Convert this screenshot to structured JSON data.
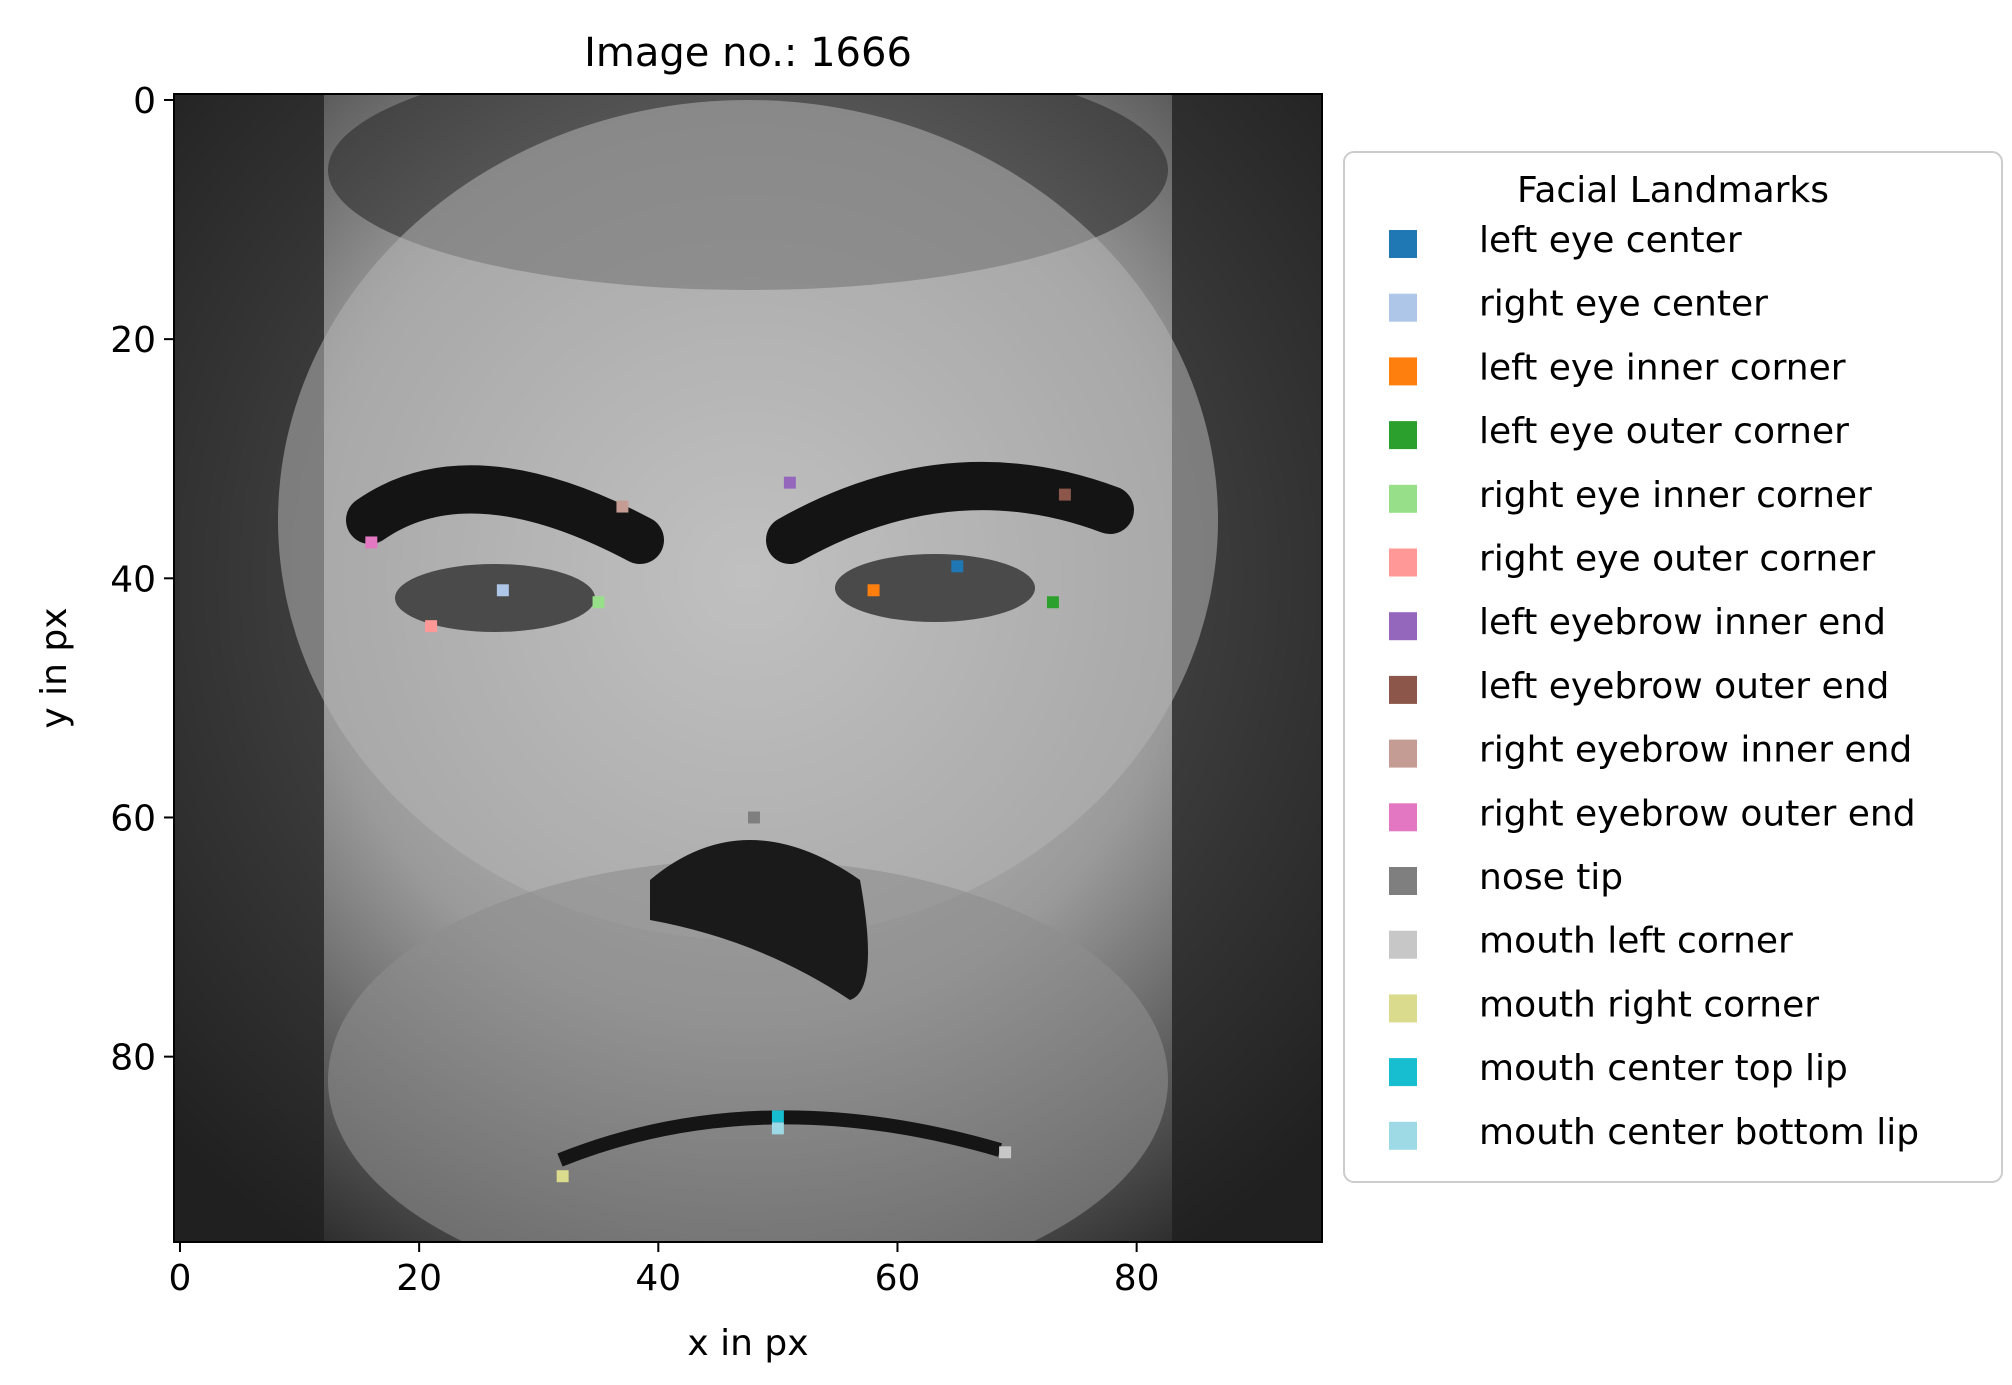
{
  "chart_data": {
    "type": "scatter",
    "title": "Image no.: 1666",
    "xlabel": "x in px",
    "ylabel": "y in px",
    "xlim": [
      -0.5,
      95.5
    ],
    "ylim": [
      95.5,
      -0.5
    ],
    "y_axis_inverted": true,
    "grid": false,
    "x_ticks": [
      0,
      20,
      40,
      60,
      80
    ],
    "y_ticks": [
      0,
      20,
      40,
      60,
      80
    ],
    "background": "grayscale photograph of a face, 96 x 96 px",
    "marker": "square",
    "legend": {
      "title": "Facial Landmarks",
      "position": "right, outside plot"
    },
    "series": [
      {
        "name": "left eye center",
        "color": "#1f77b4",
        "x": [
          65
        ],
        "y": [
          39
        ]
      },
      {
        "name": "right eye center",
        "color": "#aec7e8",
        "x": [
          27
        ],
        "y": [
          41
        ]
      },
      {
        "name": "left eye inner corner",
        "color": "#ff7f0e",
        "x": [
          58
        ],
        "y": [
          41
        ]
      },
      {
        "name": "left eye outer corner",
        "color": "#2ca02c",
        "x": [
          73
        ],
        "y": [
          42
        ]
      },
      {
        "name": "right eye inner corner",
        "color": "#98df8a",
        "x": [
          35
        ],
        "y": [
          42
        ]
      },
      {
        "name": "right eye outer corner",
        "color": "#ff9896",
        "x": [
          21
        ],
        "y": [
          44
        ]
      },
      {
        "name": "left eyebrow inner end",
        "color": "#9467bd",
        "x": [
          51
        ],
        "y": [
          32
        ]
      },
      {
        "name": "left eyebrow outer end",
        "color": "#8c564b",
        "x": [
          74
        ],
        "y": [
          33
        ]
      },
      {
        "name": "right eyebrow inner end",
        "color": "#c49c94",
        "x": [
          37
        ],
        "y": [
          34
        ]
      },
      {
        "name": "right eyebrow outer end",
        "color": "#e377c2",
        "x": [
          16
        ],
        "y": [
          37
        ]
      },
      {
        "name": "nose tip",
        "color": "#7f7f7f",
        "x": [
          48
        ],
        "y": [
          60
        ]
      },
      {
        "name": "mouth left corner",
        "color": "#c7c7c7",
        "x": [
          69
        ],
        "y": [
          88
        ]
      },
      {
        "name": "mouth right corner",
        "color": "#dbdb8d",
        "x": [
          32
        ],
        "y": [
          90
        ]
      },
      {
        "name": "mouth center top lip",
        "color": "#17becf",
        "x": [
          50
        ],
        "y": [
          85
        ]
      },
      {
        "name": "mouth center bottom lip",
        "color": "#9edae5",
        "x": [
          50
        ],
        "y": [
          86
        ]
      }
    ]
  }
}
